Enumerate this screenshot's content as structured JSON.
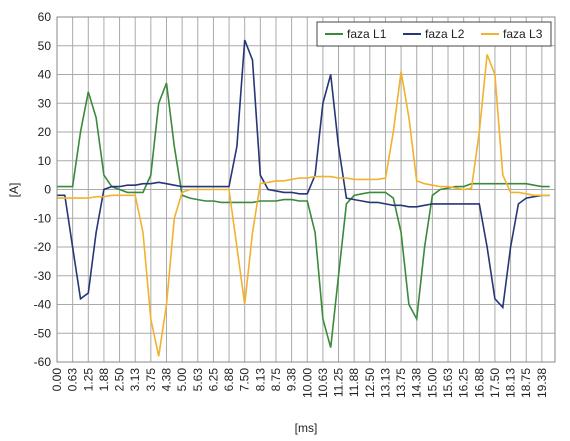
{
  "chart_data": {
    "type": "line",
    "xlabel": "[ms]",
    "ylabel": "[A]",
    "x": [
      0,
      0.3125,
      0.625,
      0.9375,
      1.25,
      1.5625,
      1.875,
      2.1875,
      2.5,
      2.8125,
      3.125,
      3.4375,
      3.75,
      4.0625,
      4.375,
      4.6875,
      5,
      5.3125,
      5.625,
      5.9375,
      6.25,
      6.5625,
      6.875,
      7.1875,
      7.5,
      7.8125,
      8.125,
      8.4375,
      8.75,
      9.0625,
      9.375,
      9.6875,
      10,
      10.3125,
      10.625,
      10.9375,
      11.25,
      11.5625,
      11.875,
      12.1875,
      12.5,
      12.8125,
      13.125,
      13.4375,
      13.75,
      14.0625,
      14.375,
      14.6875,
      15,
      15.3125,
      15.625,
      15.9375,
      16.25,
      16.5625,
      16.875,
      17.1875,
      17.5,
      17.8125,
      18.125,
      18.4375,
      18.75,
      19.0625,
      19.375,
      19.6875
    ],
    "series": [
      {
        "name": "faza L1",
        "color": "#3a8a3a",
        "values": [
          1,
          1,
          1,
          20,
          34,
          25,
          5,
          1,
          0,
          -1,
          -1,
          -1,
          5,
          30,
          37,
          15,
          -2,
          -3,
          -3.5,
          -4,
          -4,
          -4.5,
          -4.5,
          -4.5,
          -4.5,
          -4.5,
          -4,
          -4,
          -4,
          -3.5,
          -3.5,
          -4,
          -4,
          -15,
          -45,
          -55,
          -30,
          -5,
          -2,
          -1.5,
          -1,
          -1,
          -1,
          -3,
          -15,
          -40,
          -45,
          -20,
          -2,
          0,
          0.5,
          1,
          1,
          2,
          2,
          2,
          2,
          2,
          2,
          2,
          2,
          1.5,
          1,
          1
        ]
      },
      {
        "name": "faza L2",
        "color": "#253776",
        "values": [
          -2,
          -2,
          -20,
          -38,
          -36,
          -15,
          0,
          1,
          1,
          1.5,
          1.5,
          2,
          2,
          2.5,
          2,
          1.5,
          1,
          1,
          1,
          1,
          1,
          1,
          1,
          15,
          52,
          45,
          5,
          0,
          -0.5,
          -1,
          -1,
          -1.5,
          -1.5,
          5,
          30,
          40,
          15,
          -3,
          -3.5,
          -4,
          -4.5,
          -4.5,
          -5,
          -5.5,
          -5.5,
          -6,
          -6,
          -5.5,
          -5,
          -5,
          -5,
          -5,
          -5,
          -5,
          -5,
          -20,
          -38,
          -41,
          -20,
          -5,
          -3,
          -2.5,
          -2,
          -2
        ]
      },
      {
        "name": "faza L3",
        "color": "#f2b12f",
        "values": [
          -3,
          -3,
          -3,
          -3,
          -3,
          -2.5,
          -2.5,
          -2,
          -2,
          -2,
          -2,
          -15,
          -45,
          -58,
          -40,
          -10,
          -1,
          0,
          0,
          0,
          0,
          0,
          0,
          -20,
          -40,
          -15,
          2,
          2.5,
          3,
          3,
          3.5,
          4,
          4,
          4.5,
          4.5,
          4.5,
          4,
          4,
          3.5,
          3.5,
          3.5,
          3.5,
          4,
          20,
          41,
          25,
          3,
          2,
          1.5,
          1,
          1,
          0.5,
          0,
          0.5,
          20,
          47,
          40,
          5,
          -1,
          -1,
          -1.5,
          -2,
          -2,
          -2
        ]
      }
    ],
    "xlim": [
      0,
      19.9
    ],
    "xticks": [
      {
        "value": 0,
        "label": "0.00"
      },
      {
        "value": 0.625,
        "label": "0.63"
      },
      {
        "value": 1.25,
        "label": "1.25"
      },
      {
        "value": 1.875,
        "label": "1.88"
      },
      {
        "value": 2.5,
        "label": "2.50"
      },
      {
        "value": 3.125,
        "label": "3.13"
      },
      {
        "value": 3.75,
        "label": "3.75"
      },
      {
        "value": 4.375,
        "label": "4.38"
      },
      {
        "value": 5,
        "label": "5.00"
      },
      {
        "value": 5.625,
        "label": "5.63"
      },
      {
        "value": 6.25,
        "label": "6.25"
      },
      {
        "value": 6.875,
        "label": "6.88"
      },
      {
        "value": 7.5,
        "label": "7.50"
      },
      {
        "value": 8.125,
        "label": "8.13"
      },
      {
        "value": 8.75,
        "label": "8.75"
      },
      {
        "value": 9.375,
        "label": "9.38"
      },
      {
        "value": 10,
        "label": "10.00"
      },
      {
        "value": 10.625,
        "label": "10.63"
      },
      {
        "value": 11.25,
        "label": "11.25"
      },
      {
        "value": 11.875,
        "label": "11.88"
      },
      {
        "value": 12.5,
        "label": "12.50"
      },
      {
        "value": 13.125,
        "label": "13.13"
      },
      {
        "value": 13.75,
        "label": "13.75"
      },
      {
        "value": 14.375,
        "label": "14.38"
      },
      {
        "value": 15,
        "label": "15.00"
      },
      {
        "value": 15.625,
        "label": "15.63"
      },
      {
        "value": 16.25,
        "label": "16.25"
      },
      {
        "value": 16.875,
        "label": "16.88"
      },
      {
        "value": 17.5,
        "label": "17.50"
      },
      {
        "value": 18.125,
        "label": "18.13"
      },
      {
        "value": 18.75,
        "label": "18.75"
      },
      {
        "value": 19.375,
        "label": "19.38"
      }
    ],
    "ylim": [
      -60,
      60
    ],
    "yticks": [
      -60,
      -50,
      -40,
      -30,
      -20,
      -10,
      0,
      10,
      20,
      30,
      40,
      50,
      60
    ],
    "grid": true,
    "legend": "upper right"
  }
}
